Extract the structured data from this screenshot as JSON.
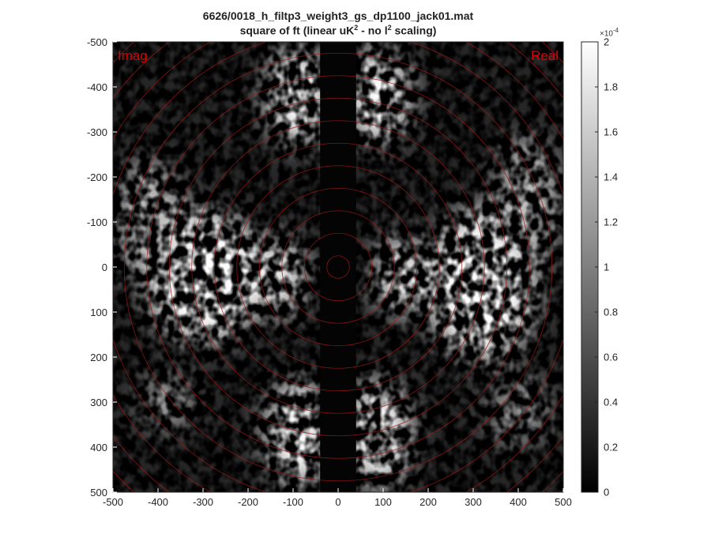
{
  "title": {
    "line1": "6626/0018_h_filtp3_weight3_gs_dp1100_jack01.mat",
    "line2_a": "square of ft (linear uK",
    "line2_sup1": "2",
    "line2_b": " - no l",
    "line2_sup2": "2",
    "line2_c": " scaling)"
  },
  "corner_labels": {
    "left": "Imag",
    "right": "Real"
  },
  "colorbar": {
    "exponent_base": "×10",
    "exponent_power": "-4",
    "ticks": [
      "0",
      "0.2",
      "0.4",
      "0.6",
      "0.8",
      "1",
      "1.2",
      "1.4",
      "1.6",
      "1.8",
      "2"
    ]
  },
  "chart_data": {
    "type": "heatmap",
    "title": "6626/0018_h_filtp3_weight3_gs_dp1100_jack01.mat / square of ft (linear uK^2 - no l^2 scaling)",
    "xlim": [
      -500,
      500
    ],
    "ylim": [
      -500,
      500
    ],
    "y_axis_reversed": true,
    "x_ticks": [
      "-500",
      "-400",
      "-300",
      "-200",
      "-100",
      "0",
      "100",
      "200",
      "300",
      "400",
      "500"
    ],
    "y_ticks": [
      "-500",
      "-400",
      "-300",
      "-200",
      "-100",
      "0",
      "100",
      "200",
      "300",
      "400",
      "500"
    ],
    "color_range": [
      0,
      0.0002
    ],
    "colormap": "gray",
    "overlay": "concentric red circles centered at (0,0)",
    "ring_radii": [
      25,
      75,
      125,
      175,
      225,
      275,
      325,
      375,
      425,
      475,
      525,
      575,
      625,
      675
    ],
    "ring_color": "#a01818",
    "corner_label_color": "#e00000",
    "masked_strip": {
      "x_range": [
        -40,
        40
      ],
      "value": 0
    },
    "bright_regions": [
      {
        "x": -90,
        "y": -380,
        "rx": 70,
        "ry": 110,
        "level": 1.0
      },
      {
        "x": 90,
        "y": -380,
        "rx": 70,
        "ry": 110,
        "level": 1.0
      },
      {
        "x": -90,
        "y": 370,
        "rx": 70,
        "ry": 120,
        "level": 1.0
      },
      {
        "x": 90,
        "y": 370,
        "rx": 70,
        "ry": 120,
        "level": 1.0
      },
      {
        "x": -300,
        "y": 20,
        "rx": 130,
        "ry": 150,
        "level": 1.0
      },
      {
        "x": 320,
        "y": 40,
        "rx": 120,
        "ry": 170,
        "level": 1.0
      },
      {
        "x": -130,
        "y": 20,
        "rx": 60,
        "ry": 90,
        "level": 0.9
      },
      {
        "x": 140,
        "y": 20,
        "rx": 60,
        "ry": 90,
        "level": 0.9
      },
      {
        "x": -420,
        "y": -100,
        "rx": 70,
        "ry": 140,
        "level": 0.7
      },
      {
        "x": 420,
        "y": -150,
        "rx": 70,
        "ry": 140,
        "level": 0.7
      },
      {
        "x": -380,
        "y": 300,
        "rx": 60,
        "ry": 60,
        "level": 0.6
      },
      {
        "x": 400,
        "y": 320,
        "rx": 70,
        "ry": 80,
        "level": 0.5
      }
    ]
  }
}
